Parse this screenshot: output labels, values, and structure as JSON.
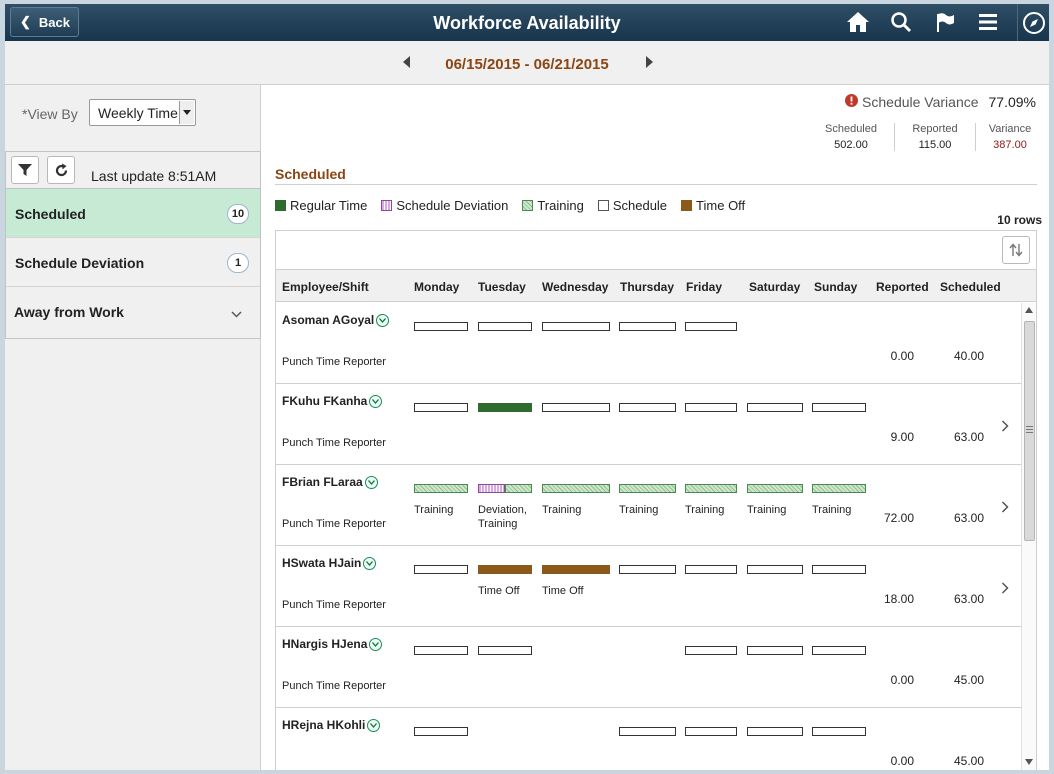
{
  "header": {
    "back_label": "Back",
    "title": "Workforce Availability",
    "icons": [
      "home-icon",
      "search-icon",
      "flag-icon",
      "menu-icon",
      "compass-icon"
    ]
  },
  "date_nav": {
    "range": "06/15/2015 - 06/21/2015"
  },
  "left": {
    "view_by_label": "*View By",
    "view_by_value": "Weekly Time",
    "last_update": "Last update 8:51AM",
    "items": [
      {
        "label": "Scheduled",
        "count": "10",
        "selected": true
      },
      {
        "label": "Schedule Deviation",
        "count": "1"
      },
      {
        "label": "Away from Work"
      }
    ]
  },
  "summary": {
    "variance_label": "Schedule Variance",
    "variance_value": "77.09%",
    "stats": [
      {
        "key": "Scheduled",
        "value": "502.00"
      },
      {
        "key": "Reported",
        "value": "115.00"
      },
      {
        "key": "Variance",
        "value": "387.00",
        "color": "#8b1a1a"
      }
    ]
  },
  "section": {
    "title": "Scheduled",
    "legend": [
      {
        "label": "Regular Time",
        "color": "#2e6b2e"
      },
      {
        "label": "Schedule Deviation",
        "color": "#d9a8e0"
      },
      {
        "label": "Training",
        "color": "#a9d3a9"
      },
      {
        "label": "Schedule",
        "color": "#ffffff"
      },
      {
        "label": "Time Off",
        "color": "#8b5a1a"
      }
    ],
    "row_count": "10 rows"
  },
  "grid": {
    "columns": [
      "Employee/Shift",
      "Monday",
      "Tuesday",
      "Wednesday",
      "Thursday",
      "Friday",
      "Saturday",
      "Sunday",
      "Reported",
      "Scheduled"
    ],
    "rows": [
      {
        "name": "Asoman AGoyal",
        "sub": "Punch Time Reporter",
        "days": [
          "sch",
          "sch",
          "sch",
          "sch",
          "sch",
          "",
          ""
        ],
        "captions": [
          "",
          "",
          "",
          "",
          "",
          "",
          ""
        ],
        "reported": "0.00",
        "scheduled": "40.00",
        "chevron": false
      },
      {
        "name": "FKuhu FKanha",
        "sub": "Punch Time Reporter",
        "days": [
          "sch",
          "reg",
          "sch",
          "sch",
          "sch",
          "sch",
          "sch"
        ],
        "captions": [
          "",
          "",
          "",
          "",
          "",
          "",
          ""
        ],
        "reported": "9.00",
        "scheduled": "63.00",
        "chevron": true
      },
      {
        "name": "FBrian FLaraa",
        "sub": "Punch Time Reporter",
        "days": [
          "trn",
          "devtrn",
          "trn",
          "trn",
          "trn",
          "trn",
          "trn"
        ],
        "captions": [
          "Training",
          "Deviation, Training",
          "Training",
          "Training",
          "Training",
          "Training",
          "Training"
        ],
        "reported": "72.00",
        "scheduled": "63.00",
        "chevron": true
      },
      {
        "name": "HSwata HJain",
        "sub": "Punch Time Reporter",
        "days": [
          "sch",
          "off",
          "off",
          "sch",
          "sch",
          "sch",
          "sch"
        ],
        "captions": [
          "",
          "Time Off",
          "Time Off",
          "",
          "",
          "",
          ""
        ],
        "reported": "18.00",
        "scheduled": "63.00",
        "chevron": true
      },
      {
        "name": "HNargis HJena",
        "sub": "Punch Time Reporter",
        "days": [
          "sch",
          "sch",
          "",
          "",
          "sch",
          "sch",
          "sch"
        ],
        "captions": [
          "",
          "",
          "",
          "",
          "",
          "",
          ""
        ],
        "reported": "0.00",
        "scheduled": "45.00",
        "chevron": false
      },
      {
        "name": "HRejna HKohli",
        "sub": "",
        "days": [
          "sch",
          "",
          "",
          "sch",
          "sch",
          "sch",
          "sch"
        ],
        "captions": [
          "",
          "",
          "",
          "",
          "",
          "",
          ""
        ],
        "reported": "0.00",
        "scheduled": "45.00",
        "chevron": false
      }
    ]
  }
}
